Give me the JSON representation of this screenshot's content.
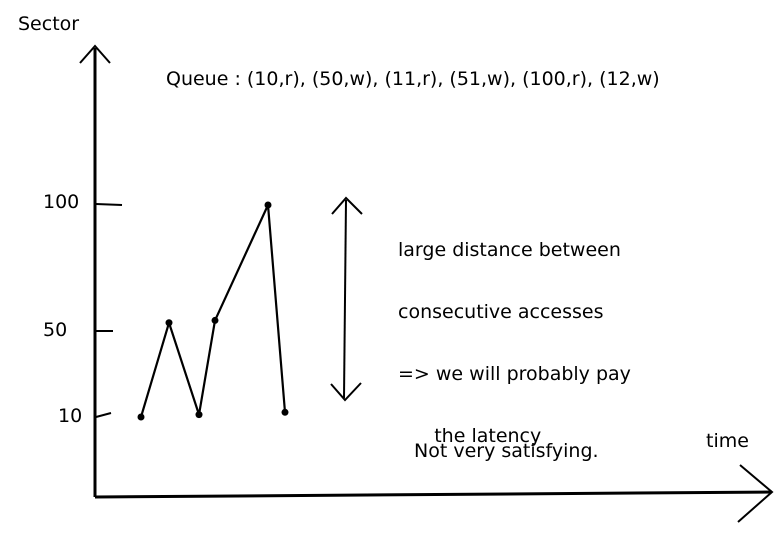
{
  "chart_data": {
    "type": "line",
    "ylabel": "Sector",
    "xlabel": "time",
    "yticks": [
      10,
      50,
      100
    ],
    "points": [
      {
        "t": 1,
        "sector": 10
      },
      {
        "t": 2,
        "sector": 50
      },
      {
        "t": 3,
        "sector": 11
      },
      {
        "t": 4,
        "sector": 51
      },
      {
        "t": 5,
        "sector": 100
      },
      {
        "t": 6,
        "sector": 12
      }
    ],
    "annotations": {
      "queue": "Queue : (10,r), (50,w), (11,r), (51,w), (100,r), (12,w)",
      "distance_note": [
        "large distance between",
        "consecutive accesses",
        "=> we will probably pay",
        "      the latency"
      ],
      "verdict": "Not very satisfying."
    },
    "grid": false
  }
}
